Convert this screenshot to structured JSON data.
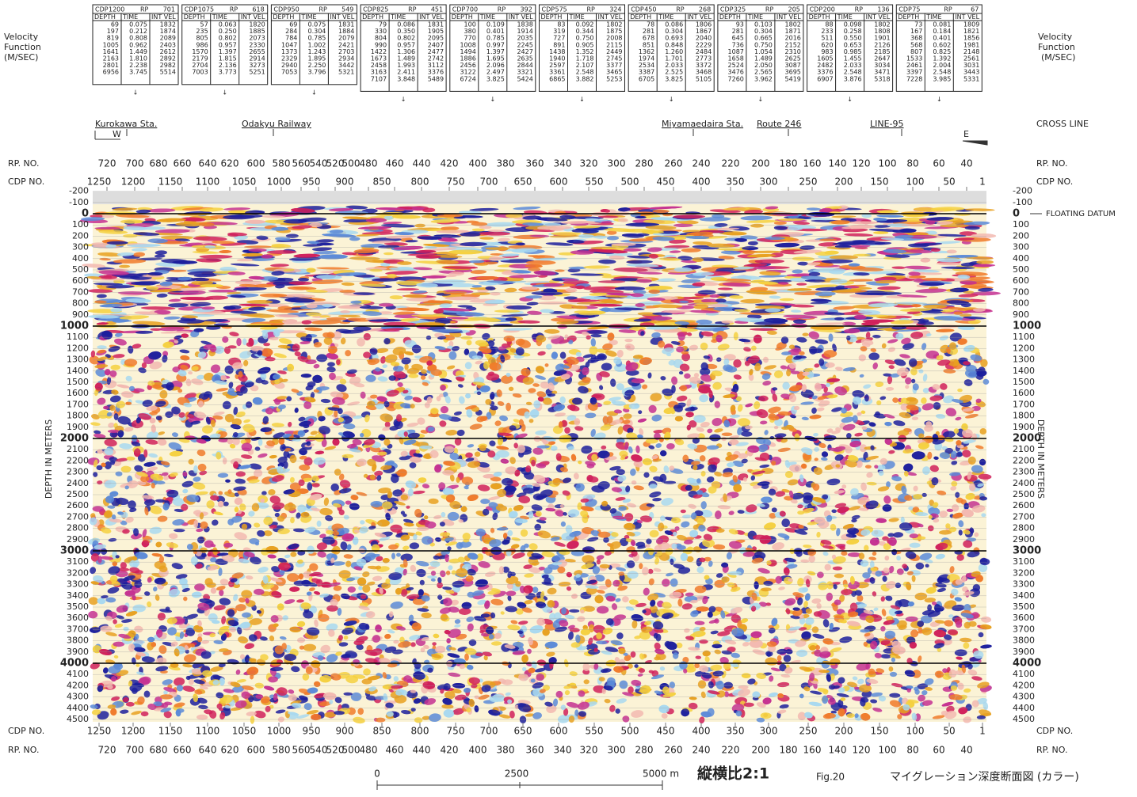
{
  "velocity_label": [
    "Velocity",
    "Function",
    "(M/SEC)"
  ],
  "tables": {
    "cdp_label": "CDP",
    "rp_label": "RP",
    "columns": [
      "DEPTH",
      "TIME",
      "INT VEL"
    ],
    "items": [
      {
        "cdp": 1200,
        "rp": 701,
        "rows": [
          [
            "69",
            "0.075",
            "1832"
          ],
          [
            "197",
            "0.212",
            "1874"
          ],
          [
            "819",
            "0.808",
            "2089"
          ],
          [
            "1005",
            "0.962",
            "2403"
          ],
          [
            "1641",
            "1.449",
            "2612"
          ],
          [
            "2163",
            "1.810",
            "2892"
          ],
          [
            "2801",
            "2.238",
            "2982"
          ],
          [
            "6956",
            "3.745",
            "5514"
          ]
        ]
      },
      {
        "cdp": 1075,
        "rp": 618,
        "rows": [
          [
            "57",
            "0.063",
            "1820"
          ],
          [
            "235",
            "0.250",
            "1885"
          ],
          [
            "805",
            "0.802",
            "2073"
          ],
          [
            "986",
            "0.957",
            "2330"
          ],
          [
            "1570",
            "1.397",
            "2655"
          ],
          [
            "2179",
            "1.815",
            "2914"
          ],
          [
            "2704",
            "2.136",
            "3273"
          ],
          [
            "7003",
            "3.773",
            "5251"
          ]
        ]
      },
      {
        "cdp": 950,
        "rp": 549,
        "rows": [
          [
            "69",
            "0.075",
            "1831"
          ],
          [
            "284",
            "0.304",
            "1884"
          ],
          [
            "784",
            "0.785",
            "2079"
          ],
          [
            "1047",
            "1.002",
            "2421"
          ],
          [
            "1373",
            "1.243",
            "2703"
          ],
          [
            "2329",
            "1.895",
            "2934"
          ],
          [
            "2940",
            "2.250",
            "3442"
          ],
          [
            "7053",
            "3.796",
            "5321"
          ]
        ]
      },
      {
        "cdp": 825,
        "rp": 451,
        "rows": [
          [
            "79",
            "0.086",
            "1831"
          ],
          [
            "330",
            "0.350",
            "1905"
          ],
          [
            "804",
            "0.802",
            "2095"
          ],
          [
            "990",
            "0.957",
            "2407"
          ],
          [
            "1422",
            "1.306",
            "2477"
          ],
          [
            "1673",
            "1.489",
            "2742"
          ],
          [
            "2458",
            "1.993",
            "3112"
          ],
          [
            "3163",
            "2.411",
            "3376"
          ],
          [
            "7107",
            "3.848",
            "5489"
          ]
        ]
      },
      {
        "cdp": 700,
        "rp": 392,
        "rows": [
          [
            "100",
            "0.109",
            "1838"
          ],
          [
            "380",
            "0.401",
            "1914"
          ],
          [
            "770",
            "0.785",
            "2035"
          ],
          [
            "1008",
            "0.997",
            "2245"
          ],
          [
            "1494",
            "1.397",
            "2427"
          ],
          [
            "1886",
            "1.695",
            "2635"
          ],
          [
            "2456",
            "2.096",
            "2844"
          ],
          [
            "3122",
            "2.497",
            "3321"
          ],
          [
            "6724",
            "3.825",
            "5424"
          ]
        ]
      },
      {
        "cdp": 575,
        "rp": 324,
        "rows": [
          [
            "83",
            "0.092",
            "1802"
          ],
          [
            "319",
            "0.344",
            "1875"
          ],
          [
            "727",
            "0.750",
            "2008"
          ],
          [
            "891",
            "0.905",
            "2115"
          ],
          [
            "1438",
            "1.352",
            "2449"
          ],
          [
            "1940",
            "1.718",
            "2745"
          ],
          [
            "2597",
            "2.107",
            "3377"
          ],
          [
            "3361",
            "2.548",
            "3465"
          ],
          [
            "6865",
            "3.882",
            "5253"
          ]
        ]
      },
      {
        "cdp": 450,
        "rp": 268,
        "rows": [
          [
            "78",
            "0.086",
            "1806"
          ],
          [
            "281",
            "0.304",
            "1867"
          ],
          [
            "678",
            "0.693",
            "2040"
          ],
          [
            "851",
            "0.848",
            "2229"
          ],
          [
            "1362",
            "1.260",
            "2484"
          ],
          [
            "1974",
            "1.701",
            "2773"
          ],
          [
            "2534",
            "2.033",
            "3372"
          ],
          [
            "3387",
            "2.525",
            "3468"
          ],
          [
            "6705",
            "3.825",
            "5105"
          ]
        ]
      },
      {
        "cdp": 325,
        "rp": 205,
        "rows": [
          [
            "93",
            "0.103",
            "1802"
          ],
          [
            "281",
            "0.304",
            "1871"
          ],
          [
            "645",
            "0.665",
            "2016"
          ],
          [
            "736",
            "0.750",
            "2152"
          ],
          [
            "1087",
            "1.054",
            "2310"
          ],
          [
            "1658",
            "1.489",
            "2625"
          ],
          [
            "2524",
            "2.050",
            "3087"
          ],
          [
            "3476",
            "2.565",
            "3695"
          ],
          [
            "7260",
            "3.962",
            "5419"
          ]
        ]
      },
      {
        "cdp": 200,
        "rp": 136,
        "rows": [
          [
            "88",
            "0.098",
            "1802"
          ],
          [
            "233",
            "0.258",
            "1808"
          ],
          [
            "511",
            "0.550",
            "1901"
          ],
          [
            "620",
            "0.653",
            "2126"
          ],
          [
            "983",
            "0.985",
            "2185"
          ],
          [
            "1605",
            "1.455",
            "2647"
          ],
          [
            "2482",
            "2.033",
            "3034"
          ],
          [
            "3376",
            "2.548",
            "3471"
          ],
          [
            "6907",
            "3.876",
            "5318"
          ]
        ]
      },
      {
        "cdp": 75,
        "rp": 67,
        "rows": [
          [
            "73",
            "0.081",
            "1809"
          ],
          [
            "167",
            "0.184",
            "1821"
          ],
          [
            "368",
            "0.401",
            "1856"
          ],
          [
            "568",
            "0.602",
            "1981"
          ],
          [
            "807",
            "0.825",
            "2148"
          ],
          [
            "1533",
            "1.392",
            "2561"
          ],
          [
            "2461",
            "2.004",
            "3031"
          ],
          [
            "3397",
            "2.548",
            "3443"
          ],
          [
            "7228",
            "3.985",
            "5331"
          ]
        ]
      }
    ]
  },
  "locations": [
    "Kurokawa Sta.",
    "Odakyu Railway",
    "Miyamaedaira Sta.",
    "Route 246",
    "LINE-95"
  ],
  "cross_line": "CROSS LINE",
  "west": "W",
  "east": "E",
  "axis": {
    "rp_label": "RP. NO.",
    "cdp_label": "CDP NO.",
    "rp_ticks": [
      720,
      700,
      680,
      660,
      640,
      620,
      600,
      580,
      560,
      540,
      520,
      500,
      480,
      460,
      440,
      420,
      400,
      380,
      360,
      340,
      320,
      300,
      280,
      260,
      240,
      220,
      200,
      180,
      160,
      140,
      120,
      100,
      80,
      60,
      40
    ],
    "cdp_ticks": [
      1250,
      1200,
      1150,
      1100,
      1050,
      1000,
      950,
      900,
      850,
      800,
      750,
      700,
      650,
      600,
      550,
      500,
      450,
      400,
      350,
      300,
      250,
      200,
      150,
      100,
      50,
      1
    ],
    "depth_ticks": [
      -200,
      -100,
      0,
      100,
      200,
      300,
      400,
      500,
      600,
      700,
      800,
      900,
      1000,
      1100,
      1200,
      1300,
      1400,
      1500,
      1600,
      1700,
      1800,
      1900,
      2000,
      2100,
      2200,
      2300,
      2400,
      2500,
      2600,
      2700,
      2800,
      2900,
      3000,
      3100,
      3200,
      3300,
      3400,
      3500,
      3600,
      3700,
      3800,
      3900,
      4000,
      4100,
      4200,
      4300,
      4400,
      4500
    ],
    "depth_title": "DEPTH IN METERS",
    "datum": "FLOATING DATUM"
  },
  "footer": {
    "scale_ticks": [
      "0",
      "2500",
      "5000 m"
    ],
    "aspect": "縦横比2:1",
    "fig": "Fig.20",
    "caption": "マイグレーション深度断面図 (カラー)"
  }
}
